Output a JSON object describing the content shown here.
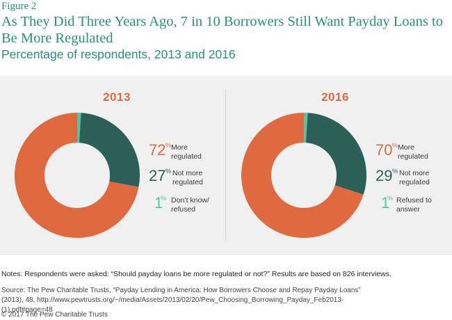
{
  "figure_label": "Figure 2",
  "title": "As They Did Three Years Ago, 7 in 10 Borrowers Still Want Payday Loans to Be More Regulated",
  "subtitle": "Percentage of respondents, 2013 and 2016",
  "colors": {
    "more": "#e06a3f",
    "not_more": "#2b5f58",
    "other": "#52c4a4",
    "accent": "#2a8f74",
    "panel": "#f0f0f0"
  },
  "chart_data": [
    {
      "type": "pie",
      "title": "2013",
      "slices": [
        {
          "pct": "72",
          "label_lines": [
            "More",
            "regulated"
          ],
          "value": 72
        },
        {
          "pct": "27",
          "label_lines": [
            "Not more",
            "regulated"
          ],
          "value": 27
        },
        {
          "pct": "1",
          "label_lines": [
            "Don’t know/",
            "refused"
          ],
          "value": 1
        }
      ]
    },
    {
      "type": "pie",
      "title": "2016",
      "slices": [
        {
          "pct": "70",
          "label_lines": [
            "More",
            "regulated"
          ],
          "value": 70
        },
        {
          "pct": "29",
          "label_lines": [
            "Not more",
            "regulated"
          ],
          "value": 29
        },
        {
          "pct": "1",
          "label_lines": [
            "Refused to",
            "answer"
          ],
          "value": 1
        }
      ]
    }
  ],
  "percent_symbol": "%",
  "notes": "Notes: Respondents were asked: “Should payday loans be more regulated or not?” Results are based on 826 interviews.",
  "source": "Source: The Pew Charitable Trusts, “Payday Lending in America: How Borrowers Choose and Repay Payday Loans” (2013), 48, http://www.pewtrusts.org/~/media/Assets/2013/02/20/Pew_Choosing_Borrowing_Payday_Feb2013-(1).pdf#page=48",
  "copyright": "© 2017 The Pew Charitable Trusts"
}
